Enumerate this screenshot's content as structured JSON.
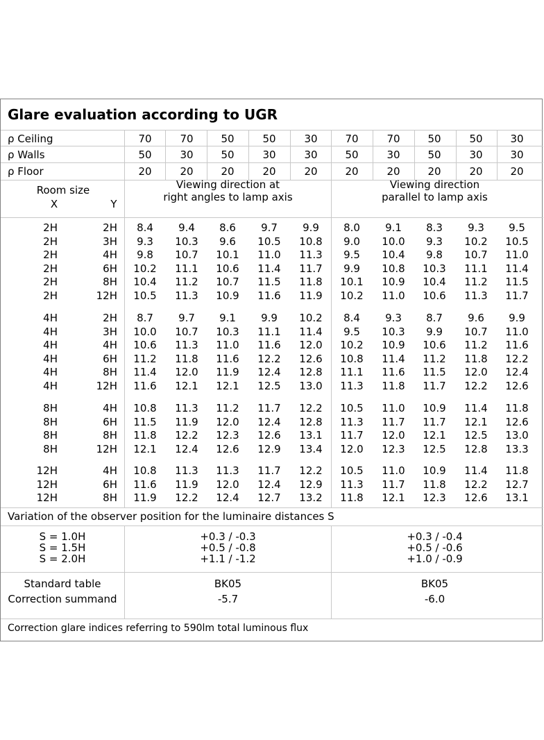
{
  "title": "Glare evaluation according to UGR",
  "reflectance": {
    "rows": [
      {
        "label": "ρ Ceiling",
        "values": [
          "70",
          "70",
          "50",
          "50",
          "30",
          "70",
          "70",
          "50",
          "50",
          "30"
        ]
      },
      {
        "label": "ρ Walls",
        "values": [
          "50",
          "30",
          "50",
          "30",
          "30",
          "50",
          "30",
          "50",
          "30",
          "30"
        ]
      },
      {
        "label": "ρ Floor",
        "values": [
          "20",
          "20",
          "20",
          "20",
          "20",
          "20",
          "20",
          "20",
          "20",
          "20"
        ]
      }
    ]
  },
  "room_size_label": "Room size",
  "x_label": "X",
  "y_label": "Y",
  "direction_right_angles": [
    "Viewing direction at",
    "right angles to lamp axis"
  ],
  "direction_parallel": [
    "Viewing direction",
    "parallel to lamp axis"
  ],
  "groups": [
    {
      "rows": [
        {
          "x": "2H",
          "y": "2H",
          "values": [
            "8.4",
            "9.4",
            "8.6",
            "9.7",
            "9.9",
            "8.0",
            "9.1",
            "8.3",
            "9.3",
            "9.5"
          ]
        },
        {
          "x": "2H",
          "y": "3H",
          "values": [
            "9.3",
            "10.3",
            "9.6",
            "10.5",
            "10.8",
            "9.0",
            "10.0",
            "9.3",
            "10.2",
            "10.5"
          ]
        },
        {
          "x": "2H",
          "y": "4H",
          "values": [
            "9.8",
            "10.7",
            "10.1",
            "11.0",
            "11.3",
            "9.5",
            "10.4",
            "9.8",
            "10.7",
            "11.0"
          ]
        },
        {
          "x": "2H",
          "y": "6H",
          "values": [
            "10.2",
            "11.1",
            "10.6",
            "11.4",
            "11.7",
            "9.9",
            "10.8",
            "10.3",
            "11.1",
            "11.4"
          ]
        },
        {
          "x": "2H",
          "y": "8H",
          "values": [
            "10.4",
            "11.2",
            "10.7",
            "11.5",
            "11.8",
            "10.1",
            "10.9",
            "10.4",
            "11.2",
            "11.5"
          ]
        },
        {
          "x": "2H",
          "y": "12H",
          "values": [
            "10.5",
            "11.3",
            "10.9",
            "11.6",
            "11.9",
            "10.2",
            "11.0",
            "10.6",
            "11.3",
            "11.7"
          ]
        }
      ]
    },
    {
      "rows": [
        {
          "x": "4H",
          "y": "2H",
          "values": [
            "8.7",
            "9.7",
            "9.1",
            "9.9",
            "10.2",
            "8.4",
            "9.3",
            "8.7",
            "9.6",
            "9.9"
          ]
        },
        {
          "x": "4H",
          "y": "3H",
          "values": [
            "10.0",
            "10.7",
            "10.3",
            "11.1",
            "11.4",
            "9.5",
            "10.3",
            "9.9",
            "10.7",
            "11.0"
          ]
        },
        {
          "x": "4H",
          "y": "4H",
          "values": [
            "10.6",
            "11.3",
            "11.0",
            "11.6",
            "12.0",
            "10.2",
            "10.9",
            "10.6",
            "11.2",
            "11.6"
          ]
        },
        {
          "x": "4H",
          "y": "6H",
          "values": [
            "11.2",
            "11.8",
            "11.6",
            "12.2",
            "12.6",
            "10.8",
            "11.4",
            "11.2",
            "11.8",
            "12.2"
          ]
        },
        {
          "x": "4H",
          "y": "8H",
          "values": [
            "11.4",
            "12.0",
            "11.9",
            "12.4",
            "12.8",
            "11.1",
            "11.6",
            "11.5",
            "12.0",
            "12.4"
          ]
        },
        {
          "x": "4H",
          "y": "12H",
          "values": [
            "11.6",
            "12.1",
            "12.1",
            "12.5",
            "13.0",
            "11.3",
            "11.8",
            "11.7",
            "12.2",
            "12.6"
          ]
        }
      ]
    },
    {
      "rows": [
        {
          "x": "8H",
          "y": "4H",
          "values": [
            "10.8",
            "11.3",
            "11.2",
            "11.7",
            "12.2",
            "10.5",
            "11.0",
            "10.9",
            "11.4",
            "11.8"
          ]
        },
        {
          "x": "8H",
          "y": "6H",
          "values": [
            "11.5",
            "11.9",
            "12.0",
            "12.4",
            "12.8",
            "11.3",
            "11.7",
            "11.7",
            "12.1",
            "12.6"
          ]
        },
        {
          "x": "8H",
          "y": "8H",
          "values": [
            "11.8",
            "12.2",
            "12.3",
            "12.6",
            "13.1",
            "11.7",
            "12.0",
            "12.1",
            "12.5",
            "13.0"
          ]
        },
        {
          "x": "8H",
          "y": "12H",
          "values": [
            "12.1",
            "12.4",
            "12.6",
            "12.9",
            "13.4",
            "12.0",
            "12.3",
            "12.5",
            "12.8",
            "13.3"
          ]
        }
      ]
    },
    {
      "rows": [
        {
          "x": "12H",
          "y": "4H",
          "values": [
            "10.8",
            "11.3",
            "11.3",
            "11.7",
            "12.2",
            "10.5",
            "11.0",
            "10.9",
            "11.4",
            "11.8"
          ]
        },
        {
          "x": "12H",
          "y": "6H",
          "values": [
            "11.6",
            "11.9",
            "12.0",
            "12.4",
            "12.9",
            "11.3",
            "11.7",
            "11.8",
            "12.2",
            "12.7"
          ]
        },
        {
          "x": "12H",
          "y": "8H",
          "values": [
            "11.9",
            "12.2",
            "12.4",
            "12.7",
            "13.2",
            "11.8",
            "12.1",
            "12.3",
            "12.6",
            "13.1"
          ]
        }
      ]
    }
  ],
  "variation_heading": "Variation of the observer position for the luminaire distances S",
  "variation": {
    "labels": [
      "S = 1.0H",
      "S = 1.5H",
      "S = 2.0H"
    ],
    "right_angles": [
      "+0.3 / -0.3",
      "+0.5 / -0.8",
      "+1.1 / -1.2"
    ],
    "parallel": [
      "+0.3 / -0.4",
      "+0.5 / -0.6",
      "+1.0 / -0.9"
    ]
  },
  "standard_table_label": "Standard table",
  "correction_summand_label": "Correction summand",
  "standard_table": {
    "right_angles": "BK05",
    "parallel": "BK05"
  },
  "correction_summand": {
    "right_angles": "-5.7",
    "parallel": "-6.0"
  },
  "footer": "Correction glare indices referring to 590lm total luminous flux"
}
